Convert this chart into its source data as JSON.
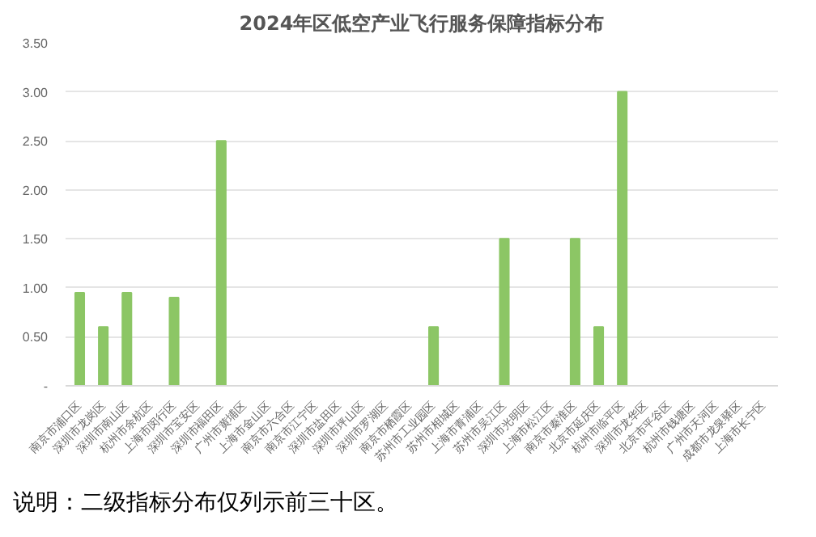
{
  "chart_data": {
    "type": "bar",
    "title": "2024年区低空产业飞行服务保障指标分布",
    "categories": [
      "南京市浦口区",
      "深圳市龙岗区",
      "深圳市南山区",
      "杭州市余杭区",
      "上海市闵行区",
      "深圳市宝安区",
      "深圳市福田区",
      "广州市黄埔区",
      "上海市金山区",
      "南京市六合区",
      "南京市江宁区",
      "深圳市盐田区",
      "深圳市坪山区",
      "深圳市罗湖区",
      "南京市栖霞区",
      "苏州市工业园区",
      "苏州市相城区",
      "上海市青浦区",
      "苏州市吴江区",
      "深圳市光明区",
      "上海市松江区",
      "南京市秦淮区",
      "北京市延庆区",
      "杭州市临平区",
      "深圳市龙华区",
      "北京市平谷区",
      "杭州市钱塘区",
      "广州市天河区",
      "成都市龙泉驿区",
      "上海市长宁区"
    ],
    "values": [
      0.95,
      0.6,
      0.95,
      0,
      0.9,
      0,
      2.5,
      0,
      0,
      0,
      0,
      0,
      0,
      0,
      0,
      0.6,
      0,
      0,
      1.5,
      0,
      0,
      1.5,
      0.6,
      3.0,
      0,
      0,
      0,
      0,
      0,
      0
    ],
    "color": "#8cc665",
    "ylim": [
      0,
      3.5
    ],
    "yticks": [
      {
        "value": 0,
        "label": "-"
      },
      {
        "value": 0.5,
        "label": "0.50"
      },
      {
        "value": 1,
        "label": "1.00"
      },
      {
        "value": 1.5,
        "label": "1.50"
      },
      {
        "value": 2,
        "label": "2.00"
      },
      {
        "value": 2.5,
        "label": "2.50"
      },
      {
        "value": 3,
        "label": "3.00"
      },
      {
        "value": 3.5,
        "label": "3.50"
      }
    ],
    "grid": "y",
    "annotations": [
      "说明：二级指标分布仅列示前三十区。"
    ]
  }
}
